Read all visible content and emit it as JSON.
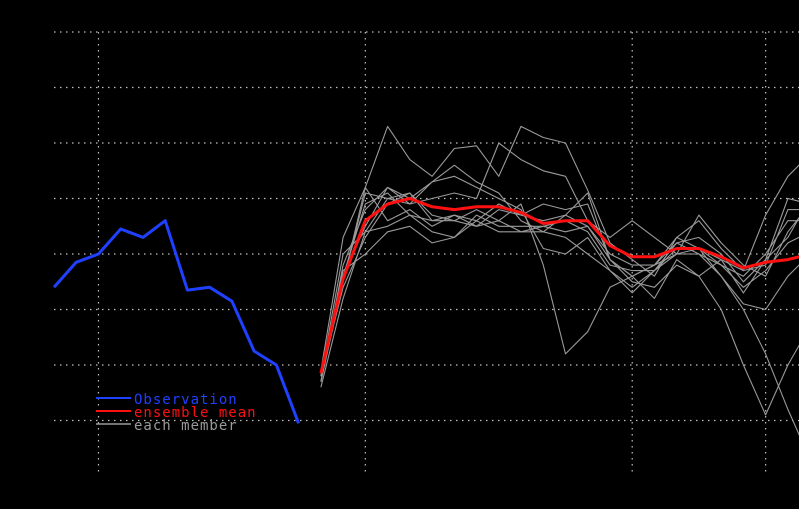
{
  "chart_data": {
    "type": "line",
    "xlim": [
      0,
      33.5
    ],
    "ylim": [
      0,
      8
    ],
    "grid": true,
    "x_gridlines": [
      2,
      14,
      26,
      32
    ],
    "y_gridlines": [
      1,
      2,
      3,
      4,
      5,
      6,
      7,
      8
    ],
    "legend_position": "bottom-left",
    "colors": {
      "observation": "#2040ff",
      "mean": "#ff1010",
      "member": "#9a9a9a",
      "grid": "#bfbfbf",
      "background": "#000000"
    },
    "legend": [
      {
        "label": "Observation",
        "key": "observation"
      },
      {
        "label": "ensemble mean",
        "key": "mean"
      },
      {
        "label": "each member",
        "key": "member"
      }
    ],
    "observation": {
      "x": [
        0,
        1,
        2,
        3,
        4,
        5,
        6,
        7,
        8,
        9,
        10,
        11
      ],
      "y": [
        3.4,
        3.85,
        4.0,
        4.45,
        4.3,
        4.6,
        3.35,
        3.4,
        3.15,
        2.25,
        2.0,
        0.95
      ]
    },
    "ensemble_mean": {
      "x": [
        12,
        13,
        14,
        15,
        16,
        17,
        18,
        19,
        20,
        21,
        22,
        23,
        24,
        25,
        26,
        27,
        28,
        29,
        30,
        31,
        32,
        33,
        34
      ],
      "y": [
        1.85,
        3.55,
        4.6,
        4.9,
        5.0,
        4.85,
        4.8,
        4.85,
        4.85,
        4.75,
        4.55,
        4.6,
        4.6,
        4.15,
        3.95,
        3.95,
        4.1,
        4.1,
        3.95,
        3.75,
        3.85,
        3.9,
        4.0
      ]
    },
    "members": [
      {
        "x": [
          12,
          13,
          14,
          15,
          16,
          17,
          18,
          19,
          20,
          21,
          22,
          23,
          24,
          25,
          26,
          27,
          28,
          29,
          30,
          31,
          32,
          33,
          34
        ],
        "y": [
          1.7,
          3.5,
          5.2,
          6.3,
          5.7,
          5.4,
          5.9,
          5.95,
          5.4,
          6.3,
          6.1,
          6.0,
          5.15,
          4.2,
          3.9,
          3.6,
          4.3,
          4.1,
          3.6,
          3.1,
          3.0,
          3.6,
          4.0
        ]
      },
      {
        "x": [
          12,
          13,
          14,
          15,
          16,
          17,
          18,
          19,
          20,
          21,
          22,
          23,
          24,
          25,
          26,
          27,
          28,
          29,
          30,
          31,
          32,
          33,
          34
        ],
        "y": [
          1.6,
          3.2,
          4.4,
          5.0,
          5.1,
          4.7,
          4.6,
          4.8,
          4.6,
          4.9,
          3.8,
          2.2,
          2.6,
          3.4,
          3.6,
          3.2,
          3.9,
          3.6,
          3.0,
          2.0,
          1.1,
          2.0,
          2.7
        ]
      },
      {
        "x": [
          12,
          13,
          14,
          15,
          16,
          17,
          18,
          19,
          20,
          21,
          22,
          23,
          24,
          25,
          26,
          27,
          28,
          29,
          30,
          31,
          32,
          33,
          34
        ],
        "y": [
          1.9,
          4.3,
          5.2,
          4.6,
          4.8,
          4.5,
          4.7,
          4.6,
          4.9,
          4.7,
          4.9,
          4.8,
          4.9,
          3.9,
          3.6,
          3.8,
          4.2,
          4.0,
          3.6,
          3.0,
          2.2,
          1.2,
          0.3
        ]
      },
      {
        "x": [
          12,
          13,
          14,
          15,
          16,
          17,
          18,
          19,
          20,
          21,
          22,
          23,
          24,
          25,
          26,
          27,
          28,
          29,
          30,
          31,
          32,
          33,
          34
        ],
        "y": [
          1.7,
          3.8,
          4.8,
          5.2,
          4.9,
          5.3,
          5.6,
          5.3,
          5.1,
          4.6,
          4.4,
          4.3,
          4.0,
          3.7,
          3.3,
          3.7,
          4.2,
          4.3,
          4.0,
          3.5,
          3.9,
          5.0,
          4.9
        ]
      },
      {
        "x": [
          12,
          13,
          14,
          15,
          16,
          17,
          18,
          19,
          20,
          21,
          22,
          23,
          24,
          25,
          26,
          27,
          28,
          29,
          30,
          31,
          32,
          33,
          34
        ],
        "y": [
          1.8,
          4.0,
          4.4,
          4.5,
          4.7,
          4.4,
          4.3,
          4.7,
          4.5,
          4.5,
          4.5,
          4.4,
          4.5,
          3.9,
          3.5,
          3.4,
          3.8,
          3.6,
          3.9,
          3.3,
          3.9,
          4.3,
          5.0
        ]
      },
      {
        "x": [
          12,
          13,
          14,
          15,
          16,
          17,
          18,
          19,
          20,
          21,
          22,
          23,
          24,
          25,
          26,
          27,
          28,
          29,
          30,
          31,
          32,
          33,
          34
        ],
        "y": [
          1.8,
          3.7,
          4.0,
          4.4,
          4.5,
          4.2,
          4.3,
          4.6,
          4.4,
          4.4,
          4.4,
          4.7,
          5.1,
          3.9,
          3.6,
          3.8,
          4.3,
          4.6,
          4.1,
          3.7,
          3.8,
          4.8,
          4.8
        ]
      },
      {
        "x": [
          12,
          13,
          14,
          15,
          16,
          17,
          18,
          19,
          20,
          21,
          22,
          23,
          24,
          25,
          26,
          27,
          28,
          29,
          30,
          31,
          32,
          33,
          34
        ],
        "y": [
          1.9,
          3.5,
          5.1,
          5.0,
          4.9,
          5.0,
          5.1,
          5.0,
          6.0,
          5.7,
          5.5,
          5.4,
          4.6,
          4.3,
          4.6,
          4.3,
          4.0,
          4.7,
          4.2,
          3.8,
          3.6,
          4.4,
          4.9
        ]
      },
      {
        "x": [
          12,
          13,
          14,
          15,
          16,
          17,
          18,
          19,
          20,
          21,
          22,
          23,
          24,
          25,
          26,
          27,
          28,
          29,
          30,
          31,
          32,
          33,
          34
        ],
        "y": [
          1.8,
          3.4,
          4.3,
          4.9,
          5.1,
          4.6,
          4.7,
          4.5,
          4.8,
          4.7,
          4.6,
          4.7,
          4.5,
          4.0,
          3.8,
          3.8,
          4.0,
          4.1,
          3.9,
          3.7,
          4.7,
          5.4,
          5.8
        ]
      },
      {
        "x": [
          12,
          13,
          14,
          15,
          16,
          17,
          18,
          19,
          20,
          21,
          22,
          23,
          24,
          25,
          26,
          27,
          28,
          29,
          30,
          31,
          32,
          33,
          34
        ],
        "y": [
          1.7,
          3.6,
          4.5,
          5.2,
          5.0,
          5.3,
          5.4,
          5.2,
          5.0,
          4.8,
          4.1,
          4.0,
          4.3,
          3.7,
          3.4,
          3.7,
          4.0,
          4.0,
          3.8,
          3.6,
          4.0,
          4.6,
          4.6
        ]
      },
      {
        "x": [
          12,
          13,
          14,
          15,
          16,
          17,
          18,
          19,
          20,
          21,
          22,
          23,
          24,
          25,
          26,
          27,
          28,
          29,
          30,
          31,
          32,
          33,
          34
        ],
        "y": [
          1.8,
          3.6,
          4.9,
          5.1,
          4.7,
          4.6,
          4.6,
          4.5,
          4.6,
          4.4,
          4.5,
          4.6,
          4.4,
          3.8,
          3.7,
          3.7,
          4.1,
          4.1,
          3.8,
          3.4,
          3.7,
          4.2,
          4.4
        ]
      }
    ]
  }
}
